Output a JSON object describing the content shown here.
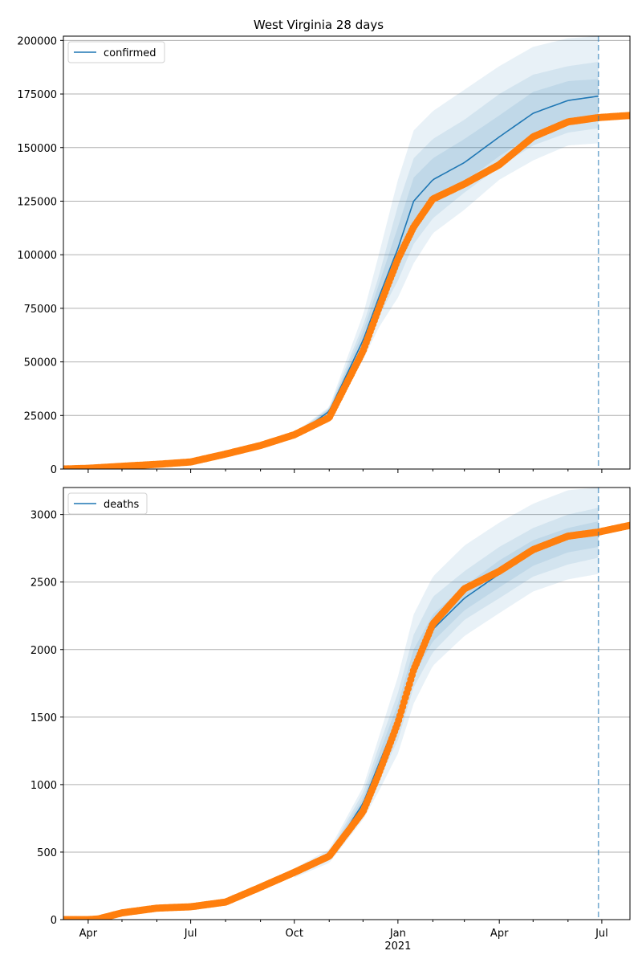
{
  "title": "West Virginia 28 days",
  "colors": {
    "forecast": "#1f77b4",
    "observed": "#ff7f0e",
    "band": "#1f77b4",
    "grid": "#b0b0b0"
  },
  "chart_data": [
    {
      "type": "line",
      "panel": "confirmed",
      "title": "West Virginia 28 days",
      "xlim": [
        "2020-03-10",
        "2021-07-26"
      ],
      "ylim": [
        0,
        202000
      ],
      "yticks": [
        0,
        25000,
        50000,
        75000,
        100000,
        125000,
        150000,
        175000,
        200000
      ],
      "grid": true,
      "legend": {
        "position": "top-left",
        "entries": [
          "confirmed"
        ]
      },
      "forecast_start": "2021-06-28",
      "series": [
        {
          "name": "confirmed",
          "style": "line",
          "points": [
            [
              "2020-10-01",
              15000
            ],
            [
              "2020-11-01",
              27000
            ],
            [
              "2020-12-01",
              60000
            ],
            [
              "2020-12-15",
              80000
            ],
            [
              "2021-01-01",
              103000
            ],
            [
              "2021-01-15",
              125000
            ],
            [
              "2021-02-01",
              135000
            ],
            [
              "2021-03-01",
              143000
            ],
            [
              "2021-04-01",
              155000
            ],
            [
              "2021-05-01",
              166000
            ],
            [
              "2021-06-01",
              172000
            ],
            [
              "2021-06-28",
              174000
            ]
          ]
        },
        {
          "name": "observed",
          "style": "markers",
          "points": [
            [
              "2020-03-10",
              0
            ],
            [
              "2020-04-01",
              350
            ],
            [
              "2020-05-01",
              1300
            ],
            [
              "2020-06-01",
              2200
            ],
            [
              "2020-07-01",
              3300
            ],
            [
              "2020-08-01",
              7000
            ],
            [
              "2020-09-01",
              11000
            ],
            [
              "2020-10-01",
              16000
            ],
            [
              "2020-11-01",
              24000
            ],
            [
              "2020-12-01",
              55000
            ],
            [
              "2020-12-15",
              75000
            ],
            [
              "2021-01-01",
              98000
            ],
            [
              "2021-01-15",
              113000
            ],
            [
              "2021-02-01",
              126000
            ],
            [
              "2021-03-01",
              133000
            ],
            [
              "2021-04-01",
              142000
            ],
            [
              "2021-05-01",
              155000
            ],
            [
              "2021-06-01",
              162000
            ],
            [
              "2021-06-28",
              164000
            ],
            [
              "2021-07-26",
              165000
            ]
          ]
        }
      ],
      "bands": [
        {
          "name": "outer",
          "points": [
            [
              "2020-10-01",
              14000,
              17000
            ],
            [
              "2020-11-01",
              25000,
              29000
            ],
            [
              "2020-12-01",
              51000,
              72000
            ],
            [
              "2020-12-15",
              66000,
              100000
            ],
            [
              "2021-01-01",
              80000,
              135000
            ],
            [
              "2021-01-15",
              96000,
              158000
            ],
            [
              "2021-02-01",
              110000,
              167000
            ],
            [
              "2021-03-01",
              121000,
              177000
            ],
            [
              "2021-04-01",
              135000,
              188000
            ],
            [
              "2021-05-01",
              144000,
              197000
            ],
            [
              "2021-06-01",
              151000,
              201000
            ],
            [
              "2021-06-28",
              152000,
              202000
            ]
          ]
        },
        {
          "name": "middle",
          "points": [
            [
              "2020-10-01",
              14500,
              16500
            ],
            [
              "2020-11-01",
              26000,
              28500
            ],
            [
              "2020-12-01",
              54000,
              67000
            ],
            [
              "2020-12-15",
              71000,
              90000
            ],
            [
              "2021-01-01",
              88000,
              123000
            ],
            [
              "2021-01-15",
              105000,
              145000
            ],
            [
              "2021-02-01",
              117000,
              154000
            ],
            [
              "2021-03-01",
              129000,
              163000
            ],
            [
              "2021-04-01",
              141000,
              175000
            ],
            [
              "2021-05-01",
              151000,
              184000
            ],
            [
              "2021-06-01",
              157000,
              188000
            ],
            [
              "2021-06-28",
              159000,
              190000
            ]
          ]
        },
        {
          "name": "inner",
          "points": [
            [
              "2020-10-01",
              14700,
              16200
            ],
            [
              "2020-11-01",
              26300,
              28000
            ],
            [
              "2020-12-01",
              56000,
              64000
            ],
            [
              "2020-12-15",
              74000,
              86000
            ],
            [
              "2021-01-01",
              93000,
              113000
            ],
            [
              "2021-01-15",
              112000,
              136000
            ],
            [
              "2021-02-01",
              124000,
              145000
            ],
            [
              "2021-03-01",
              134000,
              154000
            ],
            [
              "2021-04-01",
              146000,
              165000
            ],
            [
              "2021-05-01",
              156000,
              176000
            ],
            [
              "2021-06-01",
              162000,
              181000
            ],
            [
              "2021-06-28",
              164000,
              182000
            ]
          ]
        }
      ]
    },
    {
      "type": "line",
      "panel": "deaths",
      "xlim": [
        "2020-03-10",
        "2021-07-26"
      ],
      "ylim": [
        0,
        3200
      ],
      "yticks": [
        0,
        500,
        1000,
        1500,
        2000,
        2500,
        3000
      ],
      "grid": true,
      "legend": {
        "position": "top-left",
        "entries": [
          "deaths"
        ]
      },
      "forecast_start": "2021-06-28",
      "x_tick_labels": [
        "Apr",
        "Jul",
        "Oct",
        "Jan",
        "Apr",
        "Jul"
      ],
      "x_tick_dates": [
        "2020-04-01",
        "2020-07-01",
        "2020-10-01",
        "2021-01-01",
        "2021-04-01",
        "2021-07-01"
      ],
      "x_year_label": "2021",
      "series": [
        {
          "name": "deaths",
          "style": "line",
          "points": [
            [
              "2020-10-01",
              340
            ],
            [
              "2020-11-01",
              470
            ],
            [
              "2020-12-01",
              860
            ],
            [
              "2020-12-15",
              1150
            ],
            [
              "2021-01-01",
              1500
            ],
            [
              "2021-01-15",
              1900
            ],
            [
              "2021-02-01",
              2150
            ],
            [
              "2021-03-01",
              2380
            ],
            [
              "2021-04-01",
              2560
            ],
            [
              "2021-05-01",
              2720
            ],
            [
              "2021-06-01",
              2830
            ],
            [
              "2021-06-28",
              2870
            ]
          ]
        },
        {
          "name": "observed",
          "style": "markers",
          "points": [
            [
              "2020-03-10",
              0
            ],
            [
              "2020-04-01",
              0
            ],
            [
              "2020-04-10",
              5
            ],
            [
              "2020-05-01",
              50
            ],
            [
              "2020-06-01",
              85
            ],
            [
              "2020-07-01",
              95
            ],
            [
              "2020-08-01",
              130
            ],
            [
              "2020-09-01",
              240
            ],
            [
              "2020-10-01",
              350
            ],
            [
              "2020-11-01",
              470
            ],
            [
              "2020-12-01",
              800
            ],
            [
              "2020-12-15",
              1080
            ],
            [
              "2021-01-01",
              1460
            ],
            [
              "2021-01-15",
              1850
            ],
            [
              "2021-02-01",
              2190
            ],
            [
              "2021-03-01",
              2450
            ],
            [
              "2021-04-01",
              2580
            ],
            [
              "2021-05-01",
              2740
            ],
            [
              "2021-06-01",
              2840
            ],
            [
              "2021-06-28",
              2870
            ],
            [
              "2021-07-26",
              2920
            ]
          ]
        }
      ],
      "bands": [
        {
          "name": "outer",
          "points": [
            [
              "2020-10-01",
              310,
              380
            ],
            [
              "2020-11-01",
              420,
              520
            ],
            [
              "2020-12-01",
              740,
              980
            ],
            [
              "2020-12-15",
              950,
              1350
            ],
            [
              "2021-01-01",
              1230,
              1800
            ],
            [
              "2021-01-15",
              1600,
              2260
            ],
            [
              "2021-02-01",
              1880,
              2540
            ],
            [
              "2021-03-01",
              2100,
              2770
            ],
            [
              "2021-04-01",
              2270,
              2940
            ],
            [
              "2021-05-01",
              2430,
              3080
            ],
            [
              "2021-06-01",
              2520,
              3180
            ],
            [
              "2021-06-28",
              2560,
              3200
            ]
          ]
        },
        {
          "name": "middle",
          "points": [
            [
              "2020-10-01",
              320,
              370
            ],
            [
              "2020-11-01",
              440,
              500
            ],
            [
              "2020-12-01",
              790,
              940
            ],
            [
              "2020-12-15",
              1030,
              1280
            ],
            [
              "2021-01-01",
              1330,
              1680
            ],
            [
              "2021-01-15",
              1720,
              2110
            ],
            [
              "2021-02-01",
              1980,
              2390
            ],
            [
              "2021-03-01",
              2220,
              2580
            ],
            [
              "2021-04-01",
              2380,
              2760
            ],
            [
              "2021-05-01",
              2540,
              2900
            ],
            [
              "2021-06-01",
              2630,
              3000
            ],
            [
              "2021-06-28",
              2680,
              3050
            ]
          ]
        },
        {
          "name": "inner",
          "points": [
            [
              "2020-10-01",
              330,
              360
            ],
            [
              "2020-11-01",
              450,
              490
            ],
            [
              "2020-12-01",
              820,
              900
            ],
            [
              "2020-12-15",
              1090,
              1220
            ],
            [
              "2021-01-01",
              1410,
              1600
            ],
            [
              "2021-01-15",
              1810,
              2000
            ],
            [
              "2021-02-01",
              2060,
              2260
            ],
            [
              "2021-03-01",
              2290,
              2470
            ],
            [
              "2021-04-01",
              2460,
              2660
            ],
            [
              "2021-05-01",
              2620,
              2810
            ],
            [
              "2021-06-01",
              2720,
              2900
            ],
            [
              "2021-06-28",
              2760,
              2950
            ]
          ]
        }
      ]
    }
  ]
}
